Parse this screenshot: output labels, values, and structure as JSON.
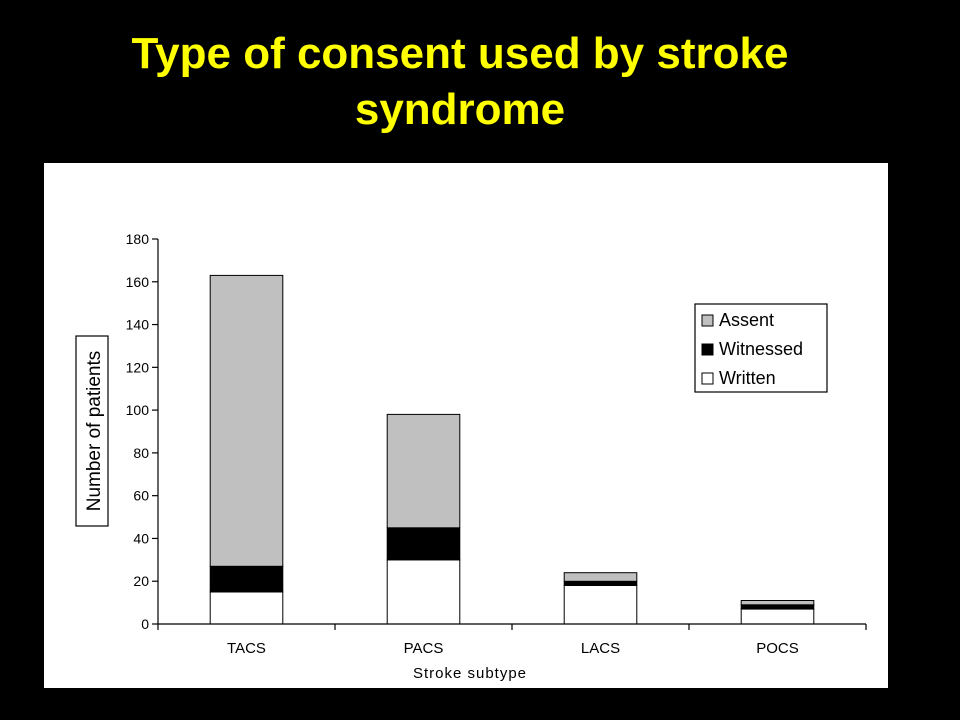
{
  "slide": {
    "title_line1": "Type of consent used by stroke",
    "title_line2": "syndrome",
    "title_color": "#ffff00",
    "background_color": "#000000"
  },
  "chart_data": {
    "type": "bar",
    "stacked": true,
    "title": "",
    "xlabel": "Stroke subtype",
    "ylabel": "Number of patients",
    "categories": [
      "TACS",
      "PACS",
      "LACS",
      "POCS"
    ],
    "ylim": [
      0,
      180
    ],
    "yticks": [
      0,
      20,
      40,
      60,
      80,
      100,
      120,
      140,
      160,
      180
    ],
    "grid": false,
    "legend_position": "right",
    "series": [
      {
        "name": "Written",
        "color": "#ffffff",
        "values": [
          15,
          30,
          18,
          7
        ]
      },
      {
        "name": "Witnessed",
        "color": "#000000",
        "values": [
          12,
          15,
          2,
          2
        ]
      },
      {
        "name": "Assent",
        "color": "#c0c0c0",
        "values": [
          136,
          53,
          4,
          2
        ]
      }
    ],
    "legend_order": [
      "Assent",
      "Witnessed",
      "Written"
    ]
  }
}
